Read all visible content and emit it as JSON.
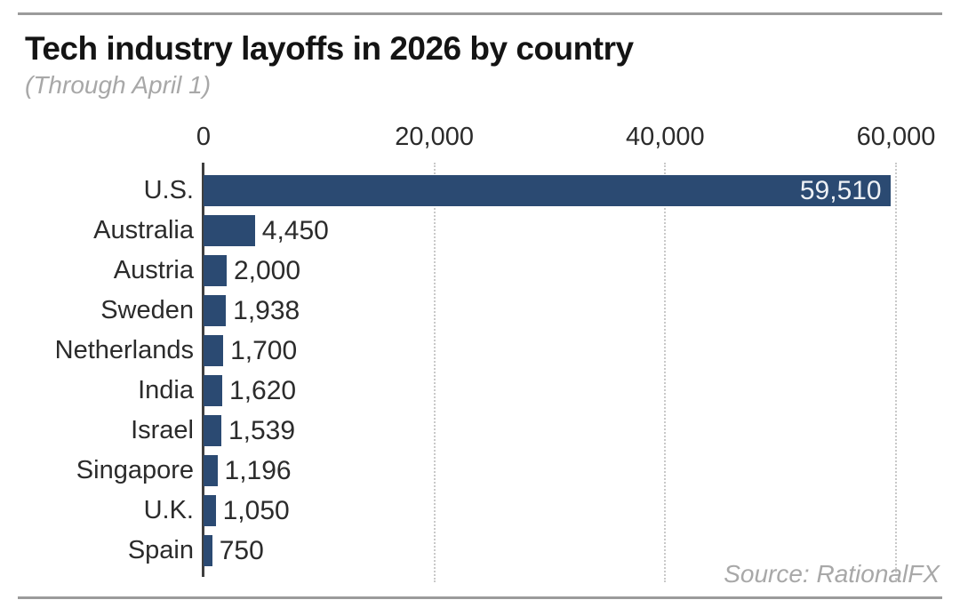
{
  "colors": {
    "bar": "#2b4a72",
    "axis": "#3f3f3f",
    "gridline": "#c9c9c9",
    "rule": "#9b9b9b",
    "title_text": "#141414",
    "label_text": "#2b2b2b",
    "muted_text": "#a8a8a8",
    "value_inside": "#eef1f5"
  },
  "chart_data": {
    "type": "bar",
    "orientation": "horizontal",
    "title": "Tech industry layoffs in 2026 by country",
    "subtitle": "(Through April 1)",
    "source": "Source: RationalFX",
    "categories": [
      "U.S.",
      "Australia",
      "Austria",
      "Sweden",
      "Netherlands",
      "India",
      "Israel",
      "Singapore",
      "U.K.",
      "Spain"
    ],
    "values": [
      59510,
      4450,
      2000,
      1938,
      1700,
      1620,
      1539,
      1196,
      1050,
      750
    ],
    "value_labels": [
      "59,510",
      "4,450",
      "2,000",
      "1,938",
      "1,700",
      "1,620",
      "1,539",
      "1,196",
      "1,050",
      "750"
    ],
    "x_ticks": [
      {
        "value": 0,
        "label": "0"
      },
      {
        "value": 20000,
        "label": "20,000"
      },
      {
        "value": 40000,
        "label": "40,000"
      },
      {
        "value": 60000,
        "label": "60,000"
      }
    ],
    "xlim": [
      0,
      60000
    ],
    "grid": "dotted vertical gridlines at ticks",
    "value_label_position": "outside right of bar; inside right for U.S.",
    "legend": "none"
  }
}
